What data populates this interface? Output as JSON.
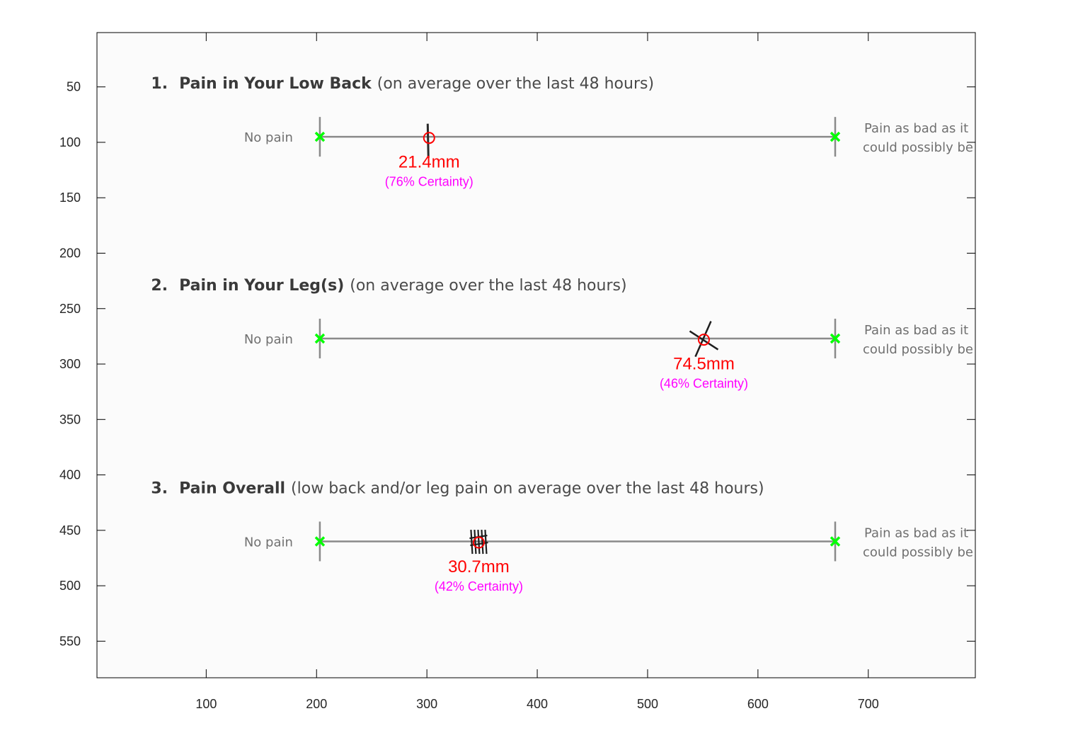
{
  "chart_data": {
    "type": "scatter",
    "title": "",
    "xlabel": "",
    "ylabel": "",
    "xlim": [
      1,
      797
    ],
    "ylim": [
      583,
      1
    ],
    "grid": false,
    "x_ticks": [
      100,
      200,
      300,
      400,
      500,
      600,
      700
    ],
    "y_ticks": [
      50,
      100,
      150,
      200,
      250,
      300,
      350,
      400,
      450,
      500,
      550
    ],
    "colors": {
      "endpoint": "#00ff00",
      "measurement": "#ff0000",
      "certainty": "#ff00ff",
      "axes": "#000000"
    },
    "questions": [
      {
        "number": "1.",
        "title_bold": "Pain in Your Low Back",
        "title_rest": "(on average over the last 48 hours)",
        "left_anchor": "No pain",
        "right_anchor_line1": "Pain as bad as it",
        "right_anchor_line2": "could possibly be",
        "line_y": 95,
        "start_x": 203,
        "end_x": 670,
        "mark": {
          "x": 302,
          "y": 96
        },
        "measurement": "21.4mm",
        "certainty": "(76% Certainty)"
      },
      {
        "number": "2.",
        "title_bold": "Pain in Your Leg(s)",
        "title_rest": "(on average over the last 48 hours)",
        "left_anchor": "No pain",
        "right_anchor_line1": "Pain as bad as it",
        "right_anchor_line2": "could possibly be",
        "line_y": 277,
        "start_x": 203,
        "end_x": 670,
        "mark": {
          "x": 551,
          "y": 278
        },
        "measurement": "74.5mm",
        "certainty": "(46% Certainty)"
      },
      {
        "number": "3.",
        "title_bold": "Pain Overall",
        "title_rest": "(low back and/or leg pain on average over the last 48 hours)",
        "left_anchor": "No pain",
        "right_anchor_line1": "Pain as bad as it",
        "right_anchor_line2": "could possibly be",
        "line_y": 460,
        "start_x": 203,
        "end_x": 670,
        "mark": {
          "x": 347,
          "y": 461
        },
        "measurement": "30.7mm",
        "certainty": "(42% Certainty)"
      }
    ]
  }
}
